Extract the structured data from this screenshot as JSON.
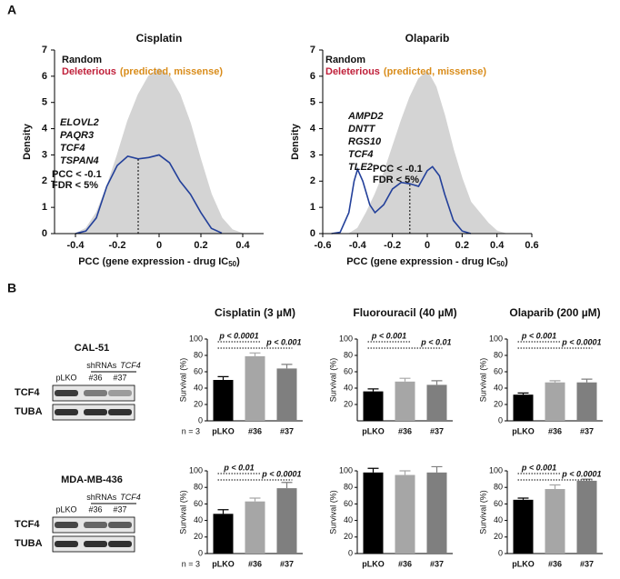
{
  "panel_a_label": "A",
  "panel_b_label": "B",
  "chart_data": [
    {
      "type": "density",
      "title": "Cisplatin",
      "ylabel": "Density",
      "xlabel_main": "PCC (gene expression - drug IC",
      "xlabel_sub": "50",
      "xlabel_end": ")",
      "xlim": [
        -0.5,
        0.5
      ],
      "xticks": [
        -0.4,
        -0.2,
        0,
        0.2,
        0.4
      ],
      "ylim": [
        0,
        7
      ],
      "yticks": [
        0,
        1,
        2,
        3,
        4,
        5,
        6,
        7
      ],
      "series": [
        {
          "name": "Random",
          "color": "#d4d4d4",
          "x": [
            -0.4,
            -0.35,
            -0.3,
            -0.25,
            -0.2,
            -0.15,
            -0.1,
            -0.05,
            0,
            0.05,
            0.1,
            0.15,
            0.2,
            0.25,
            0.3,
            0.35,
            0.4
          ],
          "values": [
            0,
            0.2,
            0.8,
            1.8,
            3.0,
            4.3,
            5.3,
            6.0,
            6.3,
            6.0,
            5.3,
            4.2,
            2.8,
            1.5,
            0.6,
            0.15,
            0
          ]
        },
        {
          "name": "Deleterious",
          "color": "#23409a",
          "legend_color": "#c0203a",
          "x": [
            -0.4,
            -0.35,
            -0.3,
            -0.25,
            -0.2,
            -0.15,
            -0.1,
            -0.05,
            0,
            0.05,
            0.1,
            0.15,
            0.2,
            0.25,
            0.3
          ],
          "values": [
            0,
            0.1,
            0.6,
            1.8,
            2.6,
            2.95,
            2.85,
            2.9,
            3.0,
            2.7,
            2.0,
            1.5,
            0.8,
            0.2,
            0.02
          ]
        }
      ],
      "legend_note": "(predicted, missense)",
      "legend_note_color": "#d98c1a",
      "genes": [
        {
          "text": "ELOVL2",
          "color": "#d98c1a"
        },
        {
          "text": "PAQR3",
          "color": "#d98c1a"
        },
        {
          "text": "TCF4",
          "color": "#d98c1a"
        },
        {
          "text": "TSPAN4",
          "color": "#c0203a"
        }
      ],
      "threshold_notes": [
        "PCC < -0.1",
        "FDR < 5%"
      ],
      "threshold_x": -0.1
    },
    {
      "type": "density",
      "title": "Olaparib",
      "ylabel": "Density",
      "xlabel_main": "PCC (gene expression - drug IC",
      "xlabel_sub": "50",
      "xlabel_end": ")",
      "xlim": [
        -0.6,
        0.6
      ],
      "xticks": [
        -0.6,
        -0.4,
        -0.2,
        0,
        0.2,
        0.4,
        0.6
      ],
      "ylim": [
        0,
        7
      ],
      "yticks": [
        0,
        1,
        2,
        3,
        4,
        5,
        6,
        7
      ],
      "series": [
        {
          "name": "Random",
          "color": "#d4d4d4",
          "x": [
            -0.45,
            -0.4,
            -0.35,
            -0.3,
            -0.25,
            -0.2,
            -0.15,
            -0.1,
            -0.05,
            0,
            0.05,
            0.1,
            0.15,
            0.2,
            0.25,
            0.3,
            0.35,
            0.4,
            0.45
          ],
          "values": [
            0,
            0.2,
            0.8,
            1.5,
            2.3,
            3.3,
            4.3,
            5.2,
            5.9,
            6.2,
            5.6,
            4.5,
            3.2,
            2.1,
            1.2,
            0.8,
            0.4,
            0.1,
            0
          ]
        },
        {
          "name": "Deleterious",
          "color": "#23409a",
          "legend_color": "#c0203a",
          "x": [
            -0.55,
            -0.5,
            -0.45,
            -0.42,
            -0.4,
            -0.37,
            -0.33,
            -0.3,
            -0.25,
            -0.2,
            -0.15,
            -0.1,
            -0.05,
            0,
            0.03,
            0.07,
            0.1,
            0.15,
            0.2,
            0.25
          ],
          "values": [
            0,
            0.05,
            0.8,
            2.0,
            2.45,
            2.0,
            1.1,
            0.8,
            1.1,
            1.7,
            1.95,
            1.9,
            1.8,
            2.4,
            2.55,
            2.2,
            1.5,
            0.5,
            0.1,
            0
          ]
        }
      ],
      "legend_note": "(predicted, missense)",
      "legend_note_color": "#d98c1a",
      "genes": [
        {
          "text": "AMPD2",
          "color": "#d98c1a"
        },
        {
          "text": "DNTT",
          "color": "#d98c1a"
        },
        {
          "text": "RGS10",
          "color": "#c0203a"
        },
        {
          "text": "TCF4",
          "color": "#d98c1a"
        },
        {
          "text": "TLE2",
          "color": "#d98c1a"
        }
      ],
      "threshold_notes": [
        "PCC < -0.1",
        "FDR < 5%"
      ],
      "threshold_x": -0.1
    },
    {
      "type": "bar",
      "title": "Cisplatin (3 µM)",
      "ylabel": "Survival (%)",
      "n_label": "n = 3",
      "categories": [
        "pLKO",
        "#36",
        "#37"
      ],
      "values": [
        50,
        79,
        64
      ],
      "errors": [
        4,
        4,
        5
      ],
      "colors": [
        "#000000",
        "#a6a6a6",
        "#7f7f7f"
      ],
      "ylim": [
        0,
        100
      ],
      "yticks": [
        0,
        20,
        40,
        60,
        80,
        100
      ],
      "comparisons": [
        {
          "label": "p < 0.0001",
          "from": 0,
          "to": 1
        },
        {
          "label": "p < 0.001",
          "from": 0,
          "to": 2
        }
      ]
    },
    {
      "type": "bar",
      "title": "Fluorouracil (40 µM)",
      "ylabel": "Survival (%)",
      "categories": [
        "pLKO",
        "#36",
        "#37"
      ],
      "values": [
        36,
        48,
        44
      ],
      "errors": [
        3,
        4,
        5
      ],
      "colors": [
        "#000000",
        "#a6a6a6",
        "#7f7f7f"
      ],
      "ylim": [
        0,
        100
      ],
      "yticks": [
        20,
        40,
        60,
        80,
        100
      ],
      "comparisons": [
        {
          "label": "p < 0.001",
          "from": 0,
          "to": 1
        },
        {
          "label": "p < 0.01",
          "from": 0,
          "to": 2
        }
      ]
    },
    {
      "type": "bar",
      "title": "Olaparib (200 µM)",
      "ylabel": "Survival (%)",
      "categories": [
        "pLKO",
        "#36",
        "#37"
      ],
      "values": [
        32,
        47,
        47
      ],
      "errors": [
        2,
        2,
        4
      ],
      "colors": [
        "#000000",
        "#a6a6a6",
        "#7f7f7f"
      ],
      "ylim": [
        0,
        100
      ],
      "yticks": [
        0,
        20,
        40,
        60,
        80,
        100
      ],
      "comparisons": [
        {
          "label": "p < 0.001",
          "from": 0,
          "to": 1
        },
        {
          "label": "p < 0.0001",
          "from": 0,
          "to": 2
        }
      ]
    },
    {
      "type": "bar",
      "ylabel": "Survival (%)",
      "n_label": "n = 3",
      "categories": [
        "pLKO",
        "#36",
        "#37"
      ],
      "values": [
        48,
        63,
        79
      ],
      "errors": [
        5,
        4,
        7
      ],
      "colors": [
        "#000000",
        "#a6a6a6",
        "#7f7f7f"
      ],
      "ylim": [
        0,
        100
      ],
      "yticks": [
        0,
        20,
        40,
        60,
        80,
        100
      ],
      "comparisons": [
        {
          "label": "p < 0.01",
          "from": 0,
          "to": 1
        },
        {
          "label": "p < 0.0001",
          "from": 0,
          "to": 2
        }
      ]
    },
    {
      "type": "bar",
      "ylabel": "Survival (%)",
      "categories": [
        "pLKO",
        "#36",
        "#37"
      ],
      "values": [
        98,
        95,
        98
      ],
      "errors": [
        5,
        5,
        7
      ],
      "colors": [
        "#000000",
        "#a6a6a6",
        "#7f7f7f"
      ],
      "ylim": [
        0,
        100
      ],
      "yticks": [
        0,
        20,
        40,
        60,
        80,
        100
      ]
    },
    {
      "type": "bar",
      "ylabel": "Survival (%)",
      "categories": [
        "pLKO",
        "#36",
        "#37"
      ],
      "values": [
        65,
        78,
        88
      ],
      "errors": [
        2,
        5,
        2
      ],
      "colors": [
        "#000000",
        "#a6a6a6",
        "#7f7f7f"
      ],
      "ylim": [
        0,
        100
      ],
      "yticks": [
        0,
        20,
        40,
        60,
        80,
        100
      ],
      "comparisons": [
        {
          "label": "p < 0.001",
          "from": 0,
          "to": 1
        },
        {
          "label": "p < 0.0001",
          "from": 0,
          "to": 2
        }
      ]
    }
  ],
  "blots": [
    {
      "cell_line": "CAL-51",
      "shrna_label": "shRNAs",
      "gene": "TCF4",
      "lanes": [
        "pLKO",
        "#36",
        "#37"
      ],
      "rows": [
        "TCF4",
        "TUBA"
      ]
    },
    {
      "cell_line": "MDA-MB-436",
      "shrna_label": "shRNAs",
      "gene": "TCF4",
      "lanes": [
        "pLKO",
        "#36",
        "#37"
      ],
      "rows": [
        "TCF4",
        "TUBA"
      ]
    }
  ]
}
